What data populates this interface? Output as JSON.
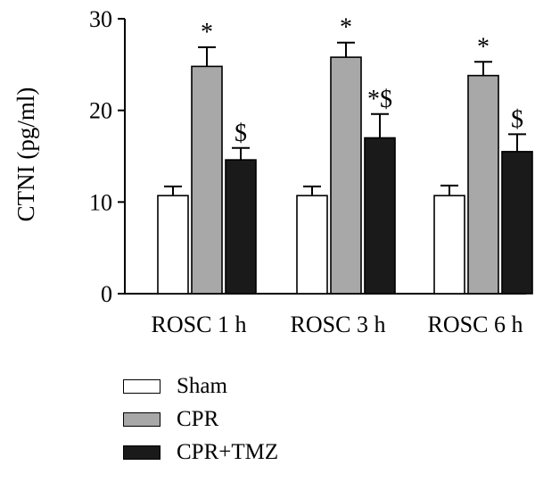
{
  "chart_data": {
    "type": "bar",
    "categories": [
      "ROSC 1 h",
      "ROSC 3 h",
      "ROSC 6 h"
    ],
    "ylabel": "CTNI (pg/ml)",
    "ylim": [
      0,
      30
    ],
    "yticks": [
      "0",
      "10",
      "20",
      "30"
    ],
    "grid": false,
    "legend_placement": "bottom",
    "series": [
      {
        "name": "Sham",
        "color": "#ffffff",
        "values": [
          10.7,
          10.7,
          10.7
        ],
        "errors": [
          1.0,
          1.0,
          1.1
        ],
        "annotations": [
          "",
          "",
          ""
        ]
      },
      {
        "name": "CPR",
        "color": "#a8a8a8",
        "values": [
          24.8,
          25.8,
          23.8
        ],
        "errors": [
          2.1,
          1.6,
          1.5
        ],
        "annotations": [
          "*",
          "*",
          "*"
        ]
      },
      {
        "name": "CPR+TMZ",
        "color": "#1a1a1a",
        "values": [
          14.6,
          17.0,
          15.5
        ],
        "errors": [
          1.3,
          2.6,
          1.9
        ],
        "annotations": [
          "$",
          "*$",
          "$"
        ]
      }
    ]
  }
}
